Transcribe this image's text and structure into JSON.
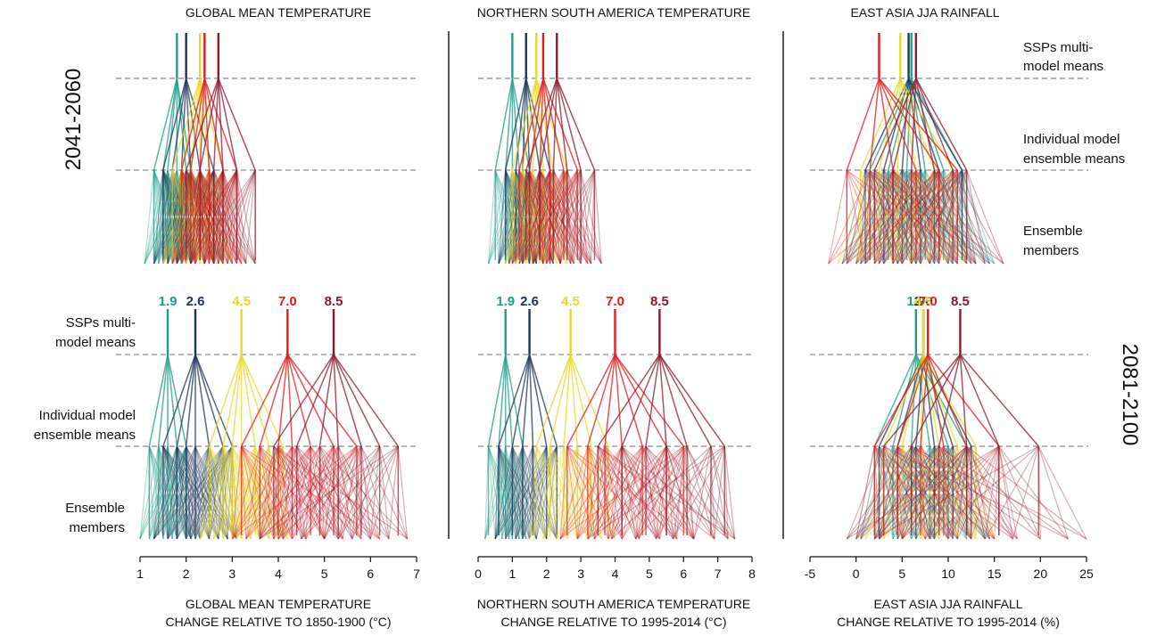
{
  "figure": {
    "row_labels": [
      "2041-2060",
      "2081-2100"
    ],
    "level_labels_top_right": {
      "ssps": [
        "SSPs multi-",
        "model means"
      ],
      "models": [
        "Individual model",
        "ensemble means"
      ],
      "members": [
        "Ensemble",
        "members"
      ]
    },
    "level_labels_bottom_left": {
      "ssps": [
        "SSPs multi-",
        "model means"
      ],
      "models": [
        "Individual model",
        "ensemble means"
      ],
      "members": [
        "Ensemble",
        "members"
      ]
    },
    "scenario_colors": {
      "1.9": "#1f9e89",
      "2.6": "#1d3557",
      "4.5": "#e8d92a",
      "7.0": "#e31a1c",
      "8.5": "#8b1a2b"
    }
  },
  "chart_data": [
    {
      "type": "line",
      "panel": "global",
      "title": "GLOBAL MEAN TEMPERATURE",
      "xlabel": [
        "GLOBAL MEAN TEMPERATURE",
        "CHANGE RELATIVE TO 1850-1900  (°C)"
      ],
      "xlim": [
        1,
        7
      ],
      "xticks": [
        1,
        2,
        3,
        4,
        5,
        6,
        7
      ],
      "series": [
        {
          "name": "1.9",
          "color": "#1f9e89",
          "mean_2041_2060": 1.8,
          "models_2041_2060": [
            1.3,
            1.5,
            1.6,
            1.8,
            2.0,
            2.1
          ],
          "members_2041_2060": [
            1.1,
            1.3,
            1.4,
            1.5,
            1.6,
            1.7,
            1.8,
            1.9,
            2.0,
            2.1,
            2.2
          ],
          "mean_2081_2100": 1.6,
          "models_2081_2100": [
            1.2,
            1.4,
            1.6,
            1.8,
            2.0
          ],
          "members_2081_2100": [
            1.0,
            1.2,
            1.3,
            1.5,
            1.6,
            1.7,
            1.8,
            2.0,
            2.1
          ]
        },
        {
          "name": "2.6",
          "color": "#1d3557",
          "mean_2041_2060": 2.0,
          "models_2041_2060": [
            1.5,
            1.7,
            1.9,
            2.1,
            2.3,
            2.6
          ],
          "members_2041_2060": [
            1.3,
            1.5,
            1.6,
            1.8,
            1.9,
            2.0,
            2.1,
            2.2,
            2.4,
            2.6,
            2.8
          ],
          "mean_2081_2100": 2.2,
          "models_2081_2100": [
            1.5,
            1.8,
            2.0,
            2.2,
            2.5,
            2.8,
            3.0
          ],
          "members_2081_2100": [
            1.3,
            1.6,
            1.8,
            2.0,
            2.1,
            2.2,
            2.3,
            2.5,
            2.7,
            2.9,
            3.1
          ]
        },
        {
          "name": "4.5",
          "color": "#e8d92a",
          "mean_2041_2060": 2.3,
          "models_2041_2060": [
            1.7,
            1.9,
            2.1,
            2.3,
            2.5,
            2.8
          ],
          "members_2041_2060": [
            1.5,
            1.7,
            1.9,
            2.0,
            2.2,
            2.3,
            2.4,
            2.6,
            2.8,
            3.0
          ],
          "mean_2081_2100": 3.2,
          "models_2081_2100": [
            2.5,
            2.8,
            3.0,
            3.2,
            3.5,
            3.8,
            4.1
          ],
          "members_2081_2100": [
            2.3,
            2.6,
            2.8,
            3.0,
            3.1,
            3.2,
            3.4,
            3.6,
            3.8,
            4.0,
            4.2
          ]
        },
        {
          "name": "7.0",
          "color": "#e31a1c",
          "mean_2041_2060": 2.4,
          "models_2041_2060": [
            1.9,
            2.1,
            2.3,
            2.5,
            2.8,
            3.1
          ],
          "members_2041_2060": [
            1.7,
            1.9,
            2.1,
            2.2,
            2.4,
            2.5,
            2.6,
            2.8,
            3.0,
            3.2
          ],
          "mean_2081_2100": 4.2,
          "models_2081_2100": [
            3.2,
            3.6,
            4.0,
            4.3,
            4.7,
            5.2,
            5.7
          ],
          "members_2081_2100": [
            3.0,
            3.3,
            3.6,
            3.9,
            4.1,
            4.3,
            4.6,
            5.0,
            5.4,
            5.8,
            6.2
          ]
        },
        {
          "name": "8.5",
          "color": "#8b1a2b",
          "mean_2041_2060": 2.7,
          "models_2041_2060": [
            2.0,
            2.3,
            2.6,
            2.8,
            3.1,
            3.5
          ],
          "members_2041_2060": [
            1.8,
            2.1,
            2.4,
            2.6,
            2.7,
            2.9,
            3.1,
            3.3,
            3.5
          ],
          "mean_2081_2100": 5.2,
          "models_2081_2100": [
            3.9,
            4.4,
            4.9,
            5.3,
            5.8,
            6.2,
            6.6
          ],
          "members_2081_2100": [
            3.6,
            4.0,
            4.5,
            5.0,
            5.3,
            5.6,
            6.0,
            6.4,
            6.8
          ]
        }
      ]
    },
    {
      "type": "line",
      "panel": "nsa",
      "title": "NORTHERN SOUTH AMERICA TEMPERATURE",
      "xlabel": [
        "NORTHERN SOUTH AMERICA TEMPERATURE",
        "CHANGE RELATIVE TO 1995-2014  (°C)"
      ],
      "xlim": [
        0,
        8
      ],
      "xticks": [
        0,
        1,
        2,
        3,
        4,
        5,
        6,
        7,
        8
      ],
      "series": [
        {
          "name": "1.9",
          "color": "#1f9e89",
          "mean_2041_2060": 1.0,
          "models_2041_2060": [
            0.5,
            0.8,
            1.0,
            1.2,
            1.5
          ],
          "members_2041_2060": [
            0.3,
            0.6,
            0.8,
            1.0,
            1.1,
            1.3,
            1.5,
            1.7
          ],
          "mean_2081_2100": 0.8,
          "models_2081_2100": [
            0.3,
            0.6,
            0.8,
            1.0,
            1.3
          ],
          "members_2081_2100": [
            0.2,
            0.5,
            0.7,
            0.9,
            1.0,
            1.2,
            1.4
          ]
        },
        {
          "name": "2.6",
          "color": "#1d3557",
          "mean_2041_2060": 1.4,
          "models_2041_2060": [
            0.8,
            1.1,
            1.3,
            1.5,
            1.8,
            2.1
          ],
          "members_2041_2060": [
            0.6,
            0.9,
            1.1,
            1.3,
            1.5,
            1.7,
            1.9,
            2.2
          ],
          "mean_2081_2100": 1.5,
          "models_2081_2100": [
            0.6,
            1.0,
            1.3,
            1.6,
            2.0,
            2.3
          ],
          "members_2081_2100": [
            0.5,
            0.8,
            1.1,
            1.3,
            1.5,
            1.7,
            2.0,
            2.3
          ]
        },
        {
          "name": "4.5",
          "color": "#e8d92a",
          "mean_2041_2060": 1.7,
          "models_2041_2060": [
            1.0,
            1.3,
            1.6,
            1.9,
            2.2,
            2.6
          ],
          "members_2041_2060": [
            0.8,
            1.1,
            1.4,
            1.6,
            1.8,
            2.0,
            2.3,
            2.6
          ],
          "mean_2081_2100": 2.7,
          "models_2081_2100": [
            1.7,
            2.1,
            2.5,
            2.9,
            3.3,
            3.8
          ],
          "members_2081_2100": [
            1.5,
            1.9,
            2.3,
            2.6,
            2.9,
            3.2,
            3.6,
            4.0
          ]
        },
        {
          "name": "7.0",
          "color": "#e31a1c",
          "mean_2041_2060": 1.9,
          "models_2041_2060": [
            1.2,
            1.5,
            1.8,
            2.1,
            2.5,
            2.9
          ],
          "members_2041_2060": [
            1.0,
            1.3,
            1.6,
            1.9,
            2.1,
            2.4,
            2.8,
            3.2
          ],
          "mean_2081_2100": 4.0,
          "models_2081_2100": [
            2.6,
            3.2,
            3.7,
            4.2,
            4.8,
            5.5,
            6.0
          ],
          "members_2081_2100": [
            2.4,
            2.9,
            3.4,
            3.8,
            4.2,
            4.7,
            5.3,
            5.8,
            6.3
          ]
        },
        {
          "name": "8.5",
          "color": "#8b1a2b",
          "mean_2041_2060": 2.3,
          "models_2041_2060": [
            1.4,
            1.8,
            2.2,
            2.6,
            3.0,
            3.4
          ],
          "members_2041_2060": [
            1.2,
            1.6,
            2.0,
            2.4,
            2.7,
            3.0,
            3.3,
            3.6
          ],
          "mean_2081_2100": 5.3,
          "models_2081_2100": [
            3.5,
            4.2,
            4.9,
            5.5,
            6.1,
            6.8,
            7.2
          ],
          "members_2081_2100": [
            3.2,
            3.9,
            4.6,
            5.2,
            5.7,
            6.3,
            6.9,
            7.3,
            7.5
          ]
        }
      ]
    },
    {
      "type": "line",
      "panel": "eastasia",
      "title": "EAST ASIA JJA RAINFALL",
      "xlabel": [
        "EAST ASIA JJA RAINFALL",
        "CHANGE RELATIVE TO 1995-2014  (%)"
      ],
      "xlim": [
        -5,
        25
      ],
      "xticks": [
        -5,
        0,
        5,
        10,
        15,
        20,
        25
      ],
      "series": [
        {
          "name": "1.9",
          "color": "#1f9e89",
          "mean_2041_2060": 6.0,
          "models_2041_2060": [
            1.5,
            3.5,
            5.5,
            7.5,
            9.5,
            11.5
          ],
          "members_2041_2060": [
            -1.0,
            1.0,
            3.0,
            5.0,
            7.0,
            9.0,
            11.0,
            13.0,
            15.0
          ],
          "mean_2081_2100": 6.5,
          "models_2081_2100": [
            2.0,
            4.0,
            6.0,
            8.0,
            10.0,
            12.0
          ],
          "members_2081_2100": [
            0.0,
            2.0,
            4.0,
            6.0,
            8.0,
            10.0,
            12.0,
            14.0
          ]
        },
        {
          "name": "2.6",
          "color": "#1d3557",
          "mean_2041_2060": 5.7,
          "models_2041_2060": [
            1.0,
            3.0,
            5.0,
            7.0,
            9.0,
            11.5
          ],
          "members_2041_2060": [
            -1.5,
            0.5,
            2.5,
            4.5,
            6.5,
            8.5,
            10.5,
            12.5,
            14.5
          ],
          "mean_2081_2100": 7.3,
          "models_2081_2100": [
            2.5,
            4.5,
            6.5,
            8.5,
            10.5,
            12.5
          ],
          "members_2081_2100": [
            0.5,
            2.5,
            4.5,
            6.5,
            8.5,
            10.5,
            12.5,
            14.5
          ]
        },
        {
          "name": "4.5",
          "color": "#e8d92a",
          "mean_2041_2060": 4.8,
          "models_2041_2060": [
            0.5,
            2.5,
            4.5,
            6.5,
            8.5,
            10.5
          ],
          "members_2041_2060": [
            -2.0,
            0.0,
            2.0,
            4.0,
            6.0,
            8.0,
            10.0,
            12.0
          ],
          "mean_2081_2100": 7.3,
          "models_2081_2100": [
            3.0,
            5.0,
            7.0,
            9.0,
            11.0,
            13.0
          ],
          "members_2081_2100": [
            1.0,
            3.0,
            5.0,
            7.0,
            9.0,
            11.0,
            13.0,
            15.0
          ]
        },
        {
          "name": "7.0",
          "color": "#e31a1c",
          "mean_2041_2060": 2.5,
          "models_2041_2060": [
            -1.0,
            1.5,
            4.0,
            6.5,
            9.0,
            11.0
          ],
          "members_2041_2060": [
            -3.0,
            -1.0,
            1.0,
            3.0,
            5.0,
            7.0,
            9.0,
            11.0,
            13.0
          ],
          "mean_2081_2100": 7.8,
          "models_2081_2100": [
            2.0,
            4.5,
            7.0,
            9.5,
            12.0,
            15.5
          ],
          "members_2081_2100": [
            0.0,
            2.5,
            5.0,
            7.5,
            10.0,
            12.5,
            15.0,
            17.5
          ]
        },
        {
          "name": "8.5",
          "color": "#8b1a2b",
          "mean_2041_2060": 6.5,
          "models_2041_2060": [
            2.0,
            4.0,
            6.0,
            8.5,
            10.5,
            12.0
          ],
          "members_2041_2060": [
            0.0,
            2.0,
            4.0,
            6.0,
            8.0,
            10.0,
            12.0,
            14.0,
            16.0
          ],
          "mean_2081_2100": 11.3,
          "models_2081_2100": [
            3.0,
            6.0,
            9.0,
            12.0,
            15.5,
            19.8
          ],
          "members_2081_2100": [
            -1.0,
            2.0,
            5.0,
            8.0,
            11.0,
            14.0,
            17.0,
            20.0,
            23.0,
            25.0
          ]
        }
      ]
    }
  ]
}
